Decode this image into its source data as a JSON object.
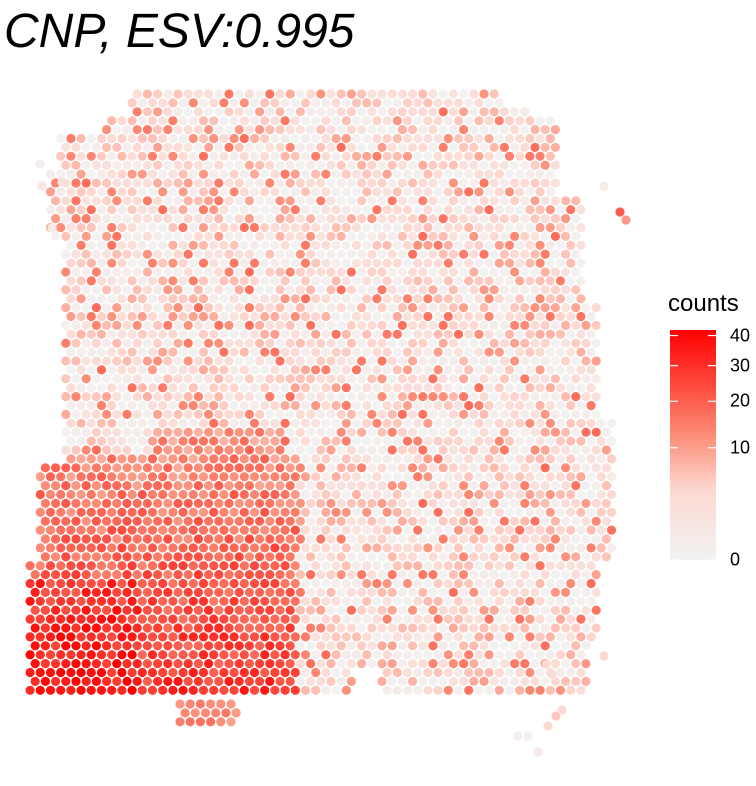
{
  "title": "CNP, ESV:0.995",
  "legend": {
    "title": "counts",
    "ticks": [
      "0",
      "10",
      "20",
      "30",
      "40"
    ],
    "low_color": "#f2f2f2",
    "high_color": "#ff0000"
  },
  "chart_data": {
    "type": "scatter",
    "title": "CNP, ESV:0.995",
    "xlabel": "",
    "ylabel": "",
    "color_variable": "counts",
    "color_scale": "sqrt",
    "color_range": [
      0,
      42
    ],
    "colorbar_ticks": [
      0,
      10,
      20,
      30,
      40
    ],
    "grid": false,
    "legend_placement": "right",
    "regions": [
      {
        "description": "dense high-count cluster (lower-left tissue)",
        "approx_count_range": [
          20,
          42
        ]
      },
      {
        "description": "scattered moderate counts (upper and right tissue)",
        "approx_count_range": [
          0,
          15
        ]
      }
    ]
  }
}
